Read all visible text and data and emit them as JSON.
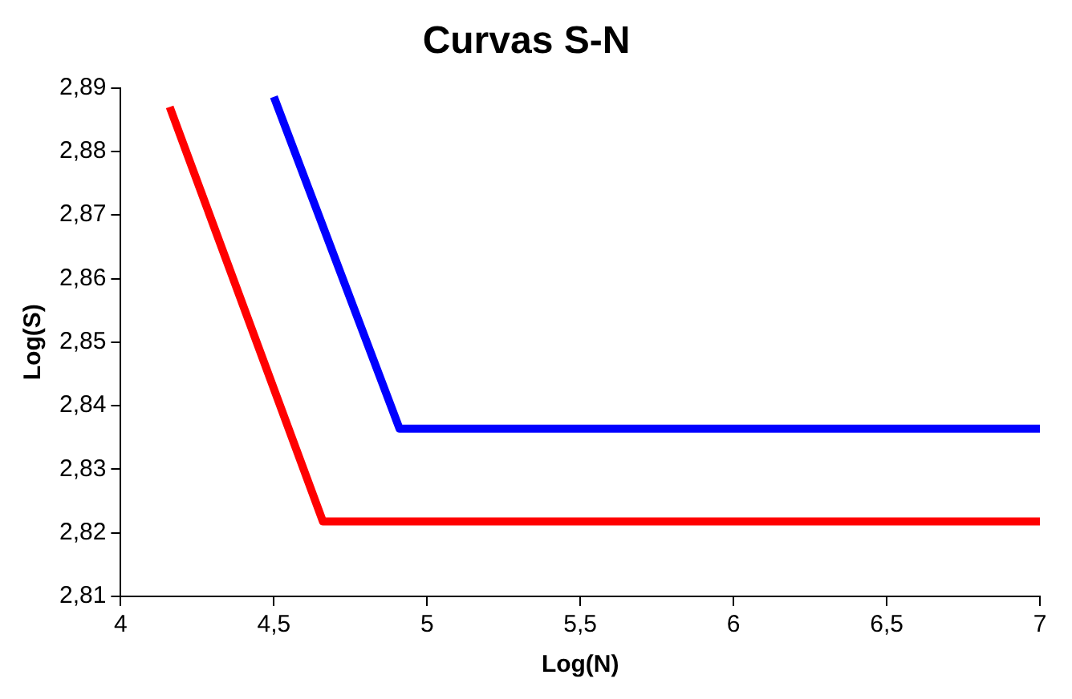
{
  "chart_data": {
    "type": "line",
    "title": "Curvas S-N",
    "xlabel": "Log(N)",
    "ylabel": "Log(S)",
    "series": [
      {
        "color": "#0000ff",
        "x": [
          4.5,
          4.91,
          7
        ],
        "values": [
          2.8886,
          2.8364,
          2.8364
        ]
      },
      {
        "color": "#ff0000",
        "x": [
          4.16,
          4.66,
          7
        ],
        "values": [
          2.887,
          2.8218,
          2.8218
        ]
      }
    ],
    "xlim": [
      4,
      7
    ],
    "xticks": [
      4,
      {
        "value": 4.5,
        "label": "4,5"
      },
      5,
      {
        "value": 5.5,
        "label": "5,5"
      },
      6,
      {
        "value": 6.5,
        "label": "6,5"
      },
      7
    ],
    "ylim": [
      2.81,
      2.89
    ],
    "yticks": [
      {
        "value": 2.81,
        "label": "2,81"
      },
      {
        "value": 2.82,
        "label": "2,82"
      },
      {
        "value": 2.83,
        "label": "2,83"
      },
      {
        "value": 2.84,
        "label": "2,84"
      },
      {
        "value": 2.85,
        "label": "2,85"
      },
      {
        "value": 2.86,
        "label": "2,86"
      },
      {
        "value": 2.87,
        "label": "2,87"
      },
      {
        "value": 2.88,
        "label": "2,88"
      },
      {
        "value": 2.89,
        "label": "2,89"
      }
    ],
    "grid": false,
    "legend": false,
    "marker": "none",
    "line_style": "solid"
  }
}
